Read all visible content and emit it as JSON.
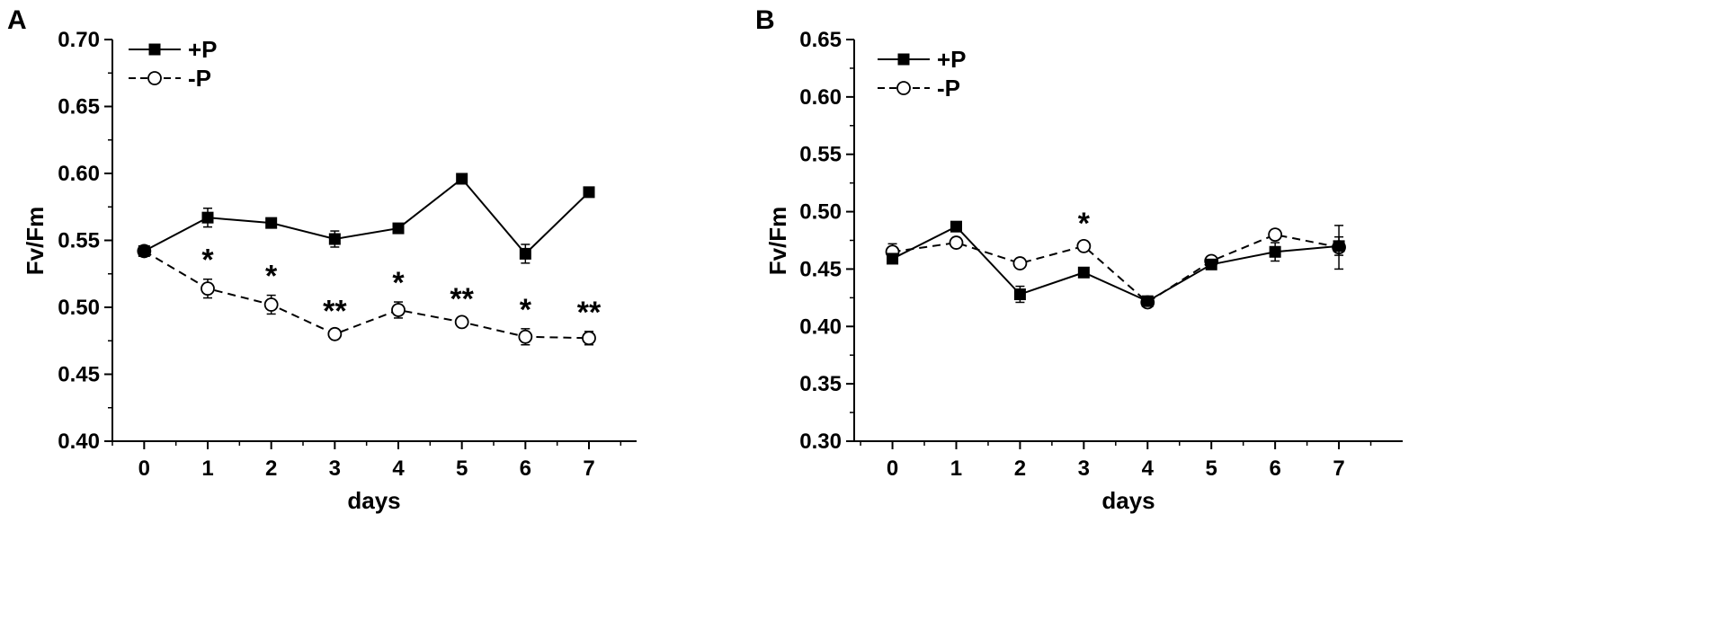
{
  "chart_data": [
    {
      "type": "line",
      "panel_label": "A",
      "xlabel": "days",
      "ylabel": "Fv/Fm",
      "x": [
        0,
        1,
        2,
        3,
        4,
        5,
        6,
        7
      ],
      "xlim": [
        -0.5,
        7.75
      ],
      "ylim": [
        0.4,
        0.7
      ],
      "yticks": [
        "0.40",
        "0.45",
        "0.50",
        "0.55",
        "0.60",
        "0.65",
        "0.70"
      ],
      "xticks": [
        "0",
        "1",
        "2",
        "3",
        "4",
        "5",
        "6",
        "7"
      ],
      "grid": false,
      "legend_position": "top-left",
      "series": [
        {
          "name": "+P",
          "marker": "filled-square",
          "line": "solid",
          "values": [
            0.542,
            0.567,
            0.563,
            0.551,
            0.559,
            0.596,
            0.54,
            0.586
          ],
          "errors": [
            0.003,
            0.007,
            0.002,
            0.006,
            0.002,
            0.002,
            0.007,
            0.002
          ]
        },
        {
          "name": "-P",
          "marker": "open-circle",
          "line": "dashed",
          "values": [
            0.542,
            0.514,
            0.502,
            0.48,
            0.498,
            0.489,
            0.478,
            0.477
          ],
          "errors": [
            0.003,
            0.007,
            0.007,
            0.003,
            0.006,
            0.003,
            0.006,
            0.005
          ]
        }
      ],
      "annotations": [
        "",
        "*",
        "*",
        "**",
        "*",
        "**",
        "*",
        "**"
      ]
    },
    {
      "type": "line",
      "panel_label": "B",
      "xlabel": "days",
      "ylabel": "Fv/Fm",
      "x": [
        0,
        1,
        2,
        3,
        4,
        5,
        6,
        7
      ],
      "xlim": [
        -0.6,
        8.0
      ],
      "ylim": [
        0.3,
        0.65
      ],
      "yticks": [
        "0.30",
        "0.35",
        "0.40",
        "0.45",
        "0.50",
        "0.55",
        "0.60",
        "0.65"
      ],
      "xticks": [
        "0",
        "1",
        "2",
        "3",
        "4",
        "5",
        "6",
        "7"
      ],
      "grid": false,
      "legend_position": "top-left",
      "series": [
        {
          "name": "+P",
          "marker": "filled-square",
          "line": "solid",
          "values": [
            0.459,
            0.487,
            0.428,
            0.447,
            0.422,
            0.454,
            0.465,
            0.47
          ],
          "errors": [
            0.004,
            0.003,
            0.007,
            0.003,
            0.003,
            0.003,
            0.008,
            0.008
          ]
        },
        {
          "name": "-P",
          "marker": "open-circle",
          "line": "dashed",
          "values": [
            0.465,
            0.473,
            0.455,
            0.47,
            0.421,
            0.457,
            0.48,
            0.469
          ],
          "errors": [
            0.007,
            0.003,
            0.003,
            0.003,
            0.003,
            0.003,
            0.003,
            0.019
          ]
        }
      ],
      "annotations": [
        "",
        "",
        "",
        "*",
        "",
        "",
        "",
        ""
      ]
    }
  ]
}
